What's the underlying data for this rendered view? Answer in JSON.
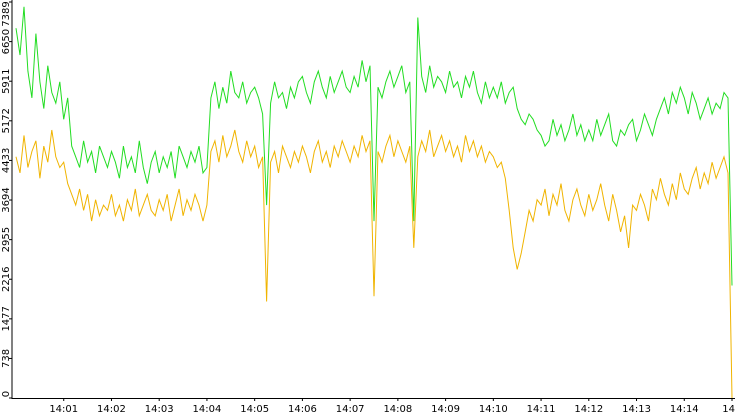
{
  "chart_data": {
    "type": "line",
    "categories": [
      null,
      null,
      null,
      null,
      null,
      null,
      null,
      null,
      null,
      null,
      null,
      null,
      "14:01",
      null,
      null,
      null,
      null,
      null,
      null,
      null,
      null,
      null,
      null,
      null,
      "14:02",
      null,
      null,
      null,
      null,
      null,
      null,
      null,
      null,
      null,
      null,
      null,
      "14:03",
      null,
      null,
      null,
      null,
      null,
      null,
      null,
      null,
      null,
      null,
      null,
      "14:04",
      null,
      null,
      null,
      null,
      null,
      null,
      null,
      null,
      null,
      null,
      null,
      "14:05",
      null,
      null,
      null,
      null,
      null,
      null,
      null,
      null,
      null,
      null,
      null,
      "14:06",
      null,
      null,
      null,
      null,
      null,
      null,
      null,
      null,
      null,
      null,
      null,
      "14:07",
      null,
      null,
      null,
      null,
      null,
      null,
      null,
      null,
      null,
      null,
      null,
      "14:08",
      null,
      null,
      null,
      null,
      null,
      null,
      null,
      null,
      null,
      null,
      null,
      "14:09",
      null,
      null,
      null,
      null,
      null,
      null,
      null,
      null,
      null,
      null,
      null,
      "14:10",
      null,
      null,
      null,
      null,
      null,
      null,
      null,
      null,
      null,
      null,
      null,
      "14:11",
      null,
      null,
      null,
      null,
      null,
      null,
      null,
      null,
      null,
      null,
      null,
      "14:12",
      null,
      null,
      null,
      null,
      null,
      null,
      null,
      null,
      null,
      null,
      null,
      "14:13",
      null,
      null,
      null,
      null,
      null,
      null,
      null,
      null,
      null,
      null,
      null,
      "14:14",
      null,
      null,
      null,
      null,
      null,
      null,
      null,
      null,
      null,
      null,
      null,
      "14"
    ],
    "series": [
      {
        "color": "#22dd22",
        "values": [
          6900,
          6400,
          7300,
          6100,
          5600,
          6800,
          5900,
          5400,
          6200,
          5700,
          5500,
          5900,
          5200,
          5600,
          4700,
          4500,
          4300,
          4800,
          4400,
          4600,
          4200,
          4700,
          4500,
          4300,
          4600,
          4400,
          4100,
          4700,
          4300,
          4500,
          4200,
          4800,
          4300,
          4000,
          4400,
          4600,
          4200,
          4500,
          4300,
          4600,
          4100,
          4700,
          4500,
          4300,
          4600,
          4400,
          4700,
          4200,
          4300,
          5600,
          5900,
          5400,
          5800,
          5500,
          6100,
          5700,
          5600,
          5900,
          5500,
          5700,
          5800,
          5600,
          5300,
          3600,
          5500,
          5900,
          5600,
          5700,
          5400,
          5800,
          5600,
          5900,
          6000,
          5700,
          5500,
          5900,
          6100,
          5800,
          5600,
          6000,
          5700,
          5900,
          6100,
          5800,
          5700,
          6000,
          5800,
          6300,
          5900,
          6200,
          3300,
          5800,
          5600,
          5900,
          6100,
          5800,
          6000,
          6200,
          5700,
          5900,
          3300,
          7100,
          6000,
          5700,
          6200,
          5800,
          6000,
          5900,
          5700,
          6100,
          5800,
          5900,
          5600,
          6000,
          5800,
          6100,
          5700,
          5500,
          5900,
          5600,
          5800,
          5600,
          5900,
          5500,
          5700,
          5800,
          5400,
          5200,
          5100,
          5300,
          5200,
          5000,
          4900,
          4700,
          4800,
          5200,
          4900,
          5100,
          4800,
          5000,
          5300,
          4900,
          5100,
          4800,
          5000,
          4800,
          5200,
          4900,
          5100,
          5300,
          4800,
          4700,
          5000,
          4900,
          5100,
          5200,
          4800,
          5000,
          5300,
          5100,
          4900,
          5200,
          5400,
          5600,
          5300,
          5700,
          5500,
          5800,
          5600,
          5300,
          5700,
          5500,
          5200,
          5400,
          5600,
          5300,
          5500,
          5400,
          5700,
          5600,
          2100
        ]
      },
      {
        "color": "#f0b400",
        "values": [
          4500,
          4200,
          4900,
          4300,
          4600,
          4800,
          4100,
          4700,
          4400,
          5000,
          4500,
          4300,
          4400,
          4000,
          3800,
          3600,
          3900,
          3500,
          3800,
          3300,
          3700,
          3400,
          3600,
          3500,
          3800,
          3400,
          3600,
          3300,
          3700,
          3500,
          3900,
          3400,
          3600,
          3800,
          3500,
          3400,
          3700,
          3500,
          3800,
          3300,
          3600,
          3900,
          3400,
          3700,
          3500,
          3800,
          3600,
          3300,
          3600,
          4600,
          4800,
          4400,
          4900,
          4500,
          4700,
          5000,
          4600,
          4400,
          4800,
          4500,
          4700,
          4300,
          4500,
          1800,
          4400,
          4600,
          4200,
          4700,
          4500,
          4300,
          4600,
          4400,
          4700,
          4500,
          4200,
          4600,
          4800,
          4400,
          4600,
          4300,
          4700,
          4500,
          4800,
          4600,
          4400,
          4700,
          4500,
          4900,
          4600,
          4800,
          1900,
          4600,
          4400,
          4700,
          4900,
          4500,
          4800,
          4600,
          4400,
          4700,
          2800,
          4500,
          4800,
          4600,
          5000,
          4500,
          4700,
          4900,
          4600,
          4800,
          4500,
          4700,
          4400,
          4900,
          4600,
          4800,
          4500,
          4700,
          4400,
          4600,
          4500,
          4300,
          4400,
          4100,
          3500,
          2800,
          2400,
          2700,
          3100,
          3500,
          3300,
          3700,
          3600,
          3900,
          3400,
          3800,
          3600,
          4000,
          3500,
          3300,
          3700,
          3900,
          3600,
          3400,
          3800,
          3500,
          3700,
          4000,
          3600,
          3300,
          3800,
          3500,
          3100,
          3400,
          2800,
          3600,
          3500,
          3800,
          3600,
          3300,
          3900,
          3700,
          4100,
          3800,
          3600,
          4000,
          3700,
          4200,
          3900,
          3800,
          4100,
          4300,
          3900,
          4200,
          4000,
          4400,
          4100,
          4300,
          4500,
          4200,
          0
        ]
      }
    ],
    "ylim": [
      0,
      7389
    ],
    "yticks": [
      0,
      738,
      1477,
      2216,
      2955,
      3694,
      4433,
      5172,
      5911,
      6650,
      7389
    ]
  }
}
